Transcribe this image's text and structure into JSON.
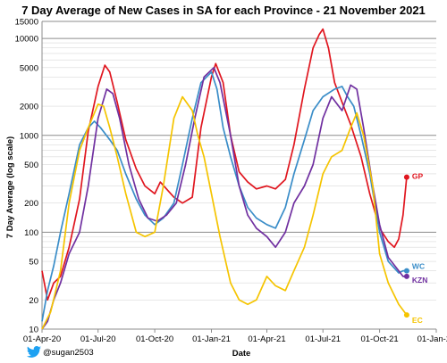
{
  "chart_data": {
    "type": "line",
    "title": "7 Day Average of New Cases in SA for each Province - 21 November 2021",
    "xlabel": "Date",
    "ylabel": "7 Day Average (log scale)",
    "y_scale": "log",
    "ylim": [
      10,
      15000
    ],
    "y_ticks": [
      10,
      20,
      50,
      100,
      200,
      500,
      1000,
      2000,
      5000,
      10000,
      15000
    ],
    "y_tick_labels": [
      "10",
      "20",
      "50",
      "100",
      "200",
      "500",
      "1000",
      "2000",
      "5000",
      "10000",
      "15000"
    ],
    "y_major_lines": [
      10,
      100,
      1000,
      10000
    ],
    "xlim": [
      "2020-04-01",
      "2022-01-01"
    ],
    "x_ticks": [
      "2020-04-01",
      "2020-07-01",
      "2020-10-01",
      "2021-01-01",
      "2021-04-01",
      "2021-07-01",
      "2021-10-01",
      "2022-01-01"
    ],
    "x_tick_labels": [
      "01-Apr-20",
      "01-Jul-20",
      "01-Oct-20",
      "01-Jan-21",
      "01-Apr-21",
      "01-Jul-21",
      "01-Oct-21",
      "01-Jan-22"
    ],
    "grid": "horizontal",
    "legend": "end labels",
    "series": [
      {
        "name": "GP",
        "color": "#e0161f",
        "points": [
          [
            "2020-04-01",
            40
          ],
          [
            "2020-04-10",
            20
          ],
          [
            "2020-04-20",
            30
          ],
          [
            "2020-05-01",
            35
          ],
          [
            "2020-05-15",
            70
          ],
          [
            "2020-06-01",
            220
          ],
          [
            "2020-06-15",
            1100
          ],
          [
            "2020-07-01",
            3200
          ],
          [
            "2020-07-12",
            5300
          ],
          [
            "2020-07-20",
            4500
          ],
          [
            "2020-08-01",
            2200
          ],
          [
            "2020-08-15",
            900
          ],
          [
            "2020-09-01",
            450
          ],
          [
            "2020-09-15",
            300
          ],
          [
            "2020-10-01",
            250
          ],
          [
            "2020-10-10",
            330
          ],
          [
            "2020-10-20",
            280
          ],
          [
            "2020-11-01",
            230
          ],
          [
            "2020-11-15",
            200
          ],
          [
            "2020-12-01",
            230
          ],
          [
            "2020-12-15",
            1200
          ],
          [
            "2021-01-01",
            4000
          ],
          [
            "2021-01-08",
            5500
          ],
          [
            "2021-01-20",
            3500
          ],
          [
            "2021-02-01",
            1000
          ],
          [
            "2021-02-15",
            420
          ],
          [
            "2021-03-01",
            330
          ],
          [
            "2021-03-15",
            280
          ],
          [
            "2021-04-01",
            300
          ],
          [
            "2021-04-15",
            280
          ],
          [
            "2021-05-01",
            350
          ],
          [
            "2021-05-15",
            800
          ],
          [
            "2021-06-01",
            3000
          ],
          [
            "2021-06-15",
            8000
          ],
          [
            "2021-06-25",
            11000
          ],
          [
            "2021-07-01",
            12500
          ],
          [
            "2021-07-10",
            8000
          ],
          [
            "2021-07-20",
            3500
          ],
          [
            "2021-08-01",
            2200
          ],
          [
            "2021-08-15",
            1300
          ],
          [
            "2021-09-01",
            600
          ],
          [
            "2021-09-15",
            250
          ],
          [
            "2021-10-01",
            110
          ],
          [
            "2021-10-15",
            80
          ],
          [
            "2021-10-25",
            70
          ],
          [
            "2021-11-01",
            85
          ],
          [
            "2021-11-08",
            150
          ],
          [
            "2021-11-14",
            370
          ]
        ]
      },
      {
        "name": "WC",
        "color": "#3a8dc8",
        "points": [
          [
            "2020-04-01",
            12
          ],
          [
            "2020-04-10",
            25
          ],
          [
            "2020-04-20",
            45
          ],
          [
            "2020-05-01",
            100
          ],
          [
            "2020-05-15",
            250
          ],
          [
            "2020-06-01",
            800
          ],
          [
            "2020-06-15",
            1200
          ],
          [
            "2020-06-25",
            1400
          ],
          [
            "2020-07-05",
            1200
          ],
          [
            "2020-07-20",
            900
          ],
          [
            "2020-08-01",
            700
          ],
          [
            "2020-08-15",
            400
          ],
          [
            "2020-09-01",
            220
          ],
          [
            "2020-09-15",
            150
          ],
          [
            "2020-10-01",
            120
          ],
          [
            "2020-10-15",
            140
          ],
          [
            "2020-11-01",
            200
          ],
          [
            "2020-11-15",
            500
          ],
          [
            "2020-12-01",
            1500
          ],
          [
            "2020-12-15",
            3500
          ],
          [
            "2021-01-01",
            4500
          ],
          [
            "2021-01-10",
            3000
          ],
          [
            "2021-01-20",
            1200
          ],
          [
            "2021-02-01",
            600
          ],
          [
            "2021-02-15",
            300
          ],
          [
            "2021-03-01",
            180
          ],
          [
            "2021-03-15",
            140
          ],
          [
            "2021-04-01",
            120
          ],
          [
            "2021-04-15",
            110
          ],
          [
            "2021-05-01",
            180
          ],
          [
            "2021-05-15",
            400
          ],
          [
            "2021-06-01",
            900
          ],
          [
            "2021-06-15",
            1800
          ],
          [
            "2021-07-01",
            2500
          ],
          [
            "2021-07-20",
            3000
          ],
          [
            "2021-08-01",
            3200
          ],
          [
            "2021-08-10",
            2500
          ],
          [
            "2021-08-20",
            2000
          ],
          [
            "2021-09-01",
            1000
          ],
          [
            "2021-09-15",
            400
          ],
          [
            "2021-10-01",
            100
          ],
          [
            "2021-10-15",
            50
          ],
          [
            "2021-11-01",
            38
          ],
          [
            "2021-11-08",
            40
          ],
          [
            "2021-11-14",
            40
          ]
        ]
      },
      {
        "name": "KZN",
        "color": "#7030a0",
        "points": [
          [
            "2020-04-01",
            10
          ],
          [
            "2020-04-10",
            12
          ],
          [
            "2020-04-20",
            20
          ],
          [
            "2020-05-01",
            30
          ],
          [
            "2020-05-15",
            60
          ],
          [
            "2020-06-01",
            100
          ],
          [
            "2020-06-15",
            300
          ],
          [
            "2020-07-01",
            1500
          ],
          [
            "2020-07-15",
            3000
          ],
          [
            "2020-07-25",
            2700
          ],
          [
            "2020-08-05",
            1500
          ],
          [
            "2020-08-20",
            500
          ],
          [
            "2020-09-05",
            220
          ],
          [
            "2020-09-20",
            140
          ],
          [
            "2020-10-05",
            130
          ],
          [
            "2020-10-20",
            150
          ],
          [
            "2020-11-05",
            200
          ],
          [
            "2020-11-20",
            500
          ],
          [
            "2020-12-05",
            1500
          ],
          [
            "2020-12-20",
            4000
          ],
          [
            "2021-01-05",
            5000
          ],
          [
            "2021-01-15",
            3500
          ],
          [
            "2021-02-01",
            1000
          ],
          [
            "2021-02-15",
            300
          ],
          [
            "2021-03-01",
            150
          ],
          [
            "2021-03-15",
            110
          ],
          [
            "2021-04-01",
            90
          ],
          [
            "2021-04-15",
            70
          ],
          [
            "2021-05-01",
            100
          ],
          [
            "2021-05-15",
            200
          ],
          [
            "2021-06-01",
            300
          ],
          [
            "2021-06-15",
            500
          ],
          [
            "2021-07-01",
            1500
          ],
          [
            "2021-07-15",
            2500
          ],
          [
            "2021-08-01",
            1800
          ],
          [
            "2021-08-15",
            3300
          ],
          [
            "2021-08-25",
            3000
          ],
          [
            "2021-09-05",
            1200
          ],
          [
            "2021-09-20",
            300
          ],
          [
            "2021-10-01",
            120
          ],
          [
            "2021-10-15",
            55
          ],
          [
            "2021-11-01",
            40
          ],
          [
            "2021-11-08",
            35
          ],
          [
            "2021-11-14",
            35
          ]
        ]
      },
      {
        "name": "EC",
        "color": "#f5c400",
        "points": [
          [
            "2020-04-01",
            10
          ],
          [
            "2020-04-15",
            15
          ],
          [
            "2020-05-01",
            40
          ],
          [
            "2020-05-15",
            200
          ],
          [
            "2020-06-01",
            700
          ],
          [
            "2020-06-15",
            1200
          ],
          [
            "2020-07-01",
            2100
          ],
          [
            "2020-07-10",
            2000
          ],
          [
            "2020-07-20",
            1200
          ],
          [
            "2020-08-01",
            600
          ],
          [
            "2020-08-15",
            250
          ],
          [
            "2020-09-01",
            100
          ],
          [
            "2020-09-15",
            90
          ],
          [
            "2020-10-01",
            100
          ],
          [
            "2020-10-15",
            300
          ],
          [
            "2020-11-01",
            1500
          ],
          [
            "2020-11-15",
            2500
          ],
          [
            "2020-12-01",
            1800
          ],
          [
            "2020-12-10",
            1000
          ],
          [
            "2020-12-20",
            600
          ],
          [
            "2021-01-01",
            250
          ],
          [
            "2021-01-15",
            90
          ],
          [
            "2021-02-01",
            30
          ],
          [
            "2021-02-15",
            20
          ],
          [
            "2021-03-01",
            18
          ],
          [
            "2021-03-15",
            20
          ],
          [
            "2021-04-01",
            35
          ],
          [
            "2021-04-15",
            28
          ],
          [
            "2021-05-01",
            25
          ],
          [
            "2021-05-15",
            40
          ],
          [
            "2021-06-01",
            70
          ],
          [
            "2021-06-15",
            150
          ],
          [
            "2021-07-01",
            400
          ],
          [
            "2021-07-15",
            600
          ],
          [
            "2021-08-01",
            700
          ],
          [
            "2021-08-15",
            1200
          ],
          [
            "2021-08-25",
            1700
          ],
          [
            "2021-09-05",
            1000
          ],
          [
            "2021-09-20",
            300
          ],
          [
            "2021-10-01",
            60
          ],
          [
            "2021-10-15",
            30
          ],
          [
            "2021-11-01",
            18
          ],
          [
            "2021-11-14",
            14
          ]
        ]
      }
    ]
  },
  "credit": {
    "icon": "twitter-bird-icon",
    "handle": "@sugan2503",
    "color": "#1da1f2"
  }
}
